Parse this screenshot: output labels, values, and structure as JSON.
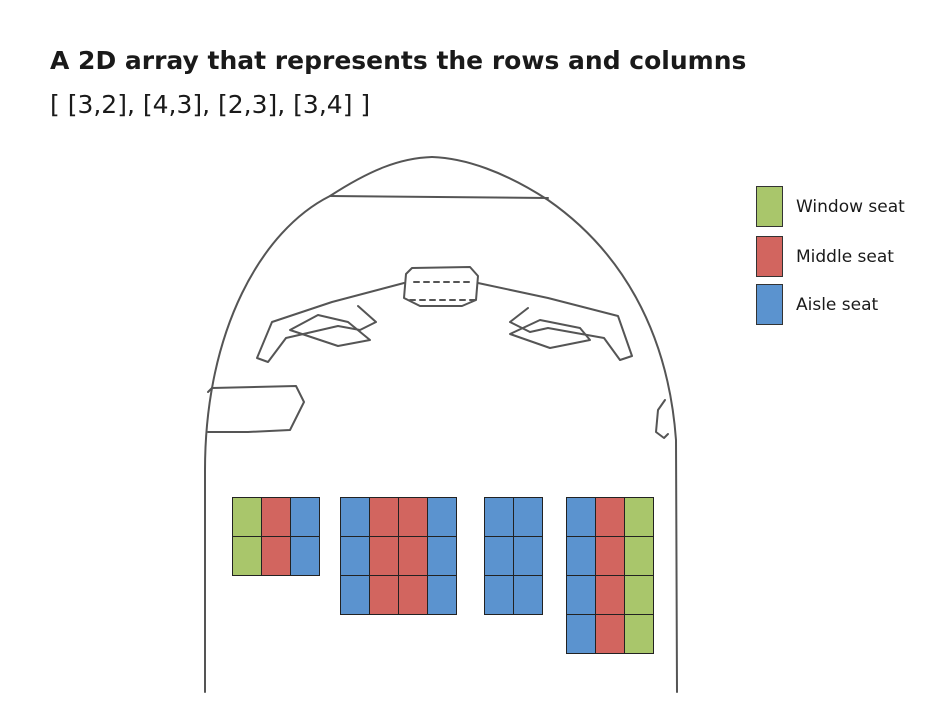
{
  "title": "A 2D array that represents the rows and columns",
  "subtitle": "[ [3,2], [4,3], [2,3], [3,4] ]",
  "colors": {
    "window": "#a9c66b",
    "middle": "#d2655f",
    "aisle": "#5b93cf",
    "outline": "#222222",
    "fuselage": "#555555"
  },
  "legend": [
    {
      "type": "window",
      "label": "Window seat"
    },
    {
      "type": "middle",
      "label": "Middle seat"
    },
    {
      "type": "aisle",
      "label": "Aisle seat"
    }
  ],
  "seat_groups": [
    {
      "rows": [
        [
          "window",
          "middle",
          "aisle"
        ],
        [
          "window",
          "middle",
          "aisle"
        ]
      ]
    },
    {
      "rows": [
        [
          "aisle",
          "middle",
          "middle",
          "aisle"
        ],
        [
          "aisle",
          "middle",
          "middle",
          "aisle"
        ],
        [
          "aisle",
          "middle",
          "middle",
          "aisle"
        ]
      ]
    },
    {
      "rows": [
        [
          "aisle",
          "aisle"
        ],
        [
          "aisle",
          "aisle"
        ],
        [
          "aisle",
          "aisle"
        ]
      ]
    },
    {
      "rows": [
        [
          "aisle",
          "middle",
          "window"
        ],
        [
          "aisle",
          "middle",
          "window"
        ],
        [
          "aisle",
          "middle",
          "window"
        ],
        [
          "aisle",
          "middle",
          "window"
        ]
      ]
    }
  ]
}
